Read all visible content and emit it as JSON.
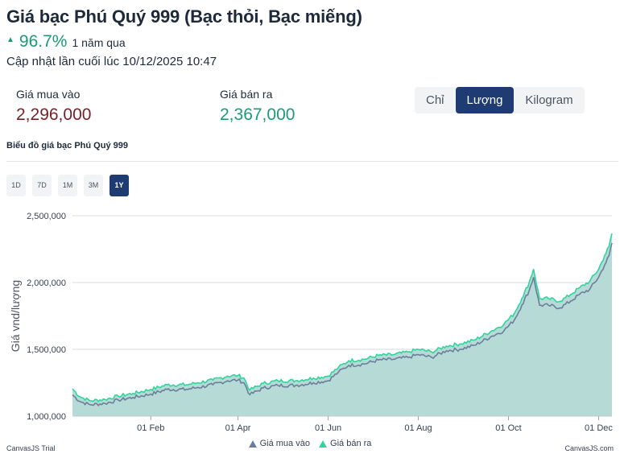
{
  "page": {
    "title": "Giá bạc Phú Quý 999 (Bạc thỏi, Bạc miếng)",
    "change_value": "96.7%",
    "change_period": "1 năm qua",
    "updated": "Cập nhật lần cuối lúc 10/12/2025 10:47",
    "buy_label": "Giá mua vào",
    "buy_value": "2,296,000",
    "sell_label": "Giá bán ra",
    "sell_value": "2,367,000",
    "units": [
      "Chỉ",
      "Lượng",
      "Kilogram"
    ],
    "active_unit": "Lượng",
    "chart_title": "Biểu đồ giá bạc Phú Quý 999",
    "ranges": [
      "1D",
      "7D",
      "1M",
      "3M",
      "1Y"
    ],
    "active_range": "1Y",
    "watermark_left": "CanvasJS Trial",
    "watermark_right": "CanvasJS.com"
  },
  "colors": {
    "buy_line": "#6b7f9c",
    "sell_line": "#2fd59a",
    "area_fill": "#b6dbd6",
    "accent": "#1f3b73",
    "up": "#1a9b76"
  },
  "chart_data": {
    "type": "area",
    "title": "",
    "xlabel": "",
    "ylabel": "Giá vnd/lượng",
    "ylim": [
      1000000,
      2500000
    ],
    "xlim": [
      "2024-12-10",
      "2025-12-10"
    ],
    "yticks": [
      1000000,
      1500000,
      2000000,
      2500000
    ],
    "ytick_labels": [
      "1,000,000",
      "1,500,000",
      "2,000,000",
      "2,500,000"
    ],
    "xticks": [
      "2025-02-01",
      "2025-04-01",
      "2025-06-01",
      "2025-08-01",
      "2025-10-01",
      "2025-12-01"
    ],
    "xtick_labels": [
      "01 Feb",
      "01 Apr",
      "01 Jun",
      "01 Aug",
      "01 Oct",
      "01 Dec"
    ],
    "grid": true,
    "legend": "bottom-center",
    "x": [
      "2024-12-10",
      "2024-12-15",
      "2024-12-22",
      "2025-01-01",
      "2025-01-10",
      "2025-01-20",
      "2025-02-01",
      "2025-02-12",
      "2025-02-25",
      "2025-03-05",
      "2025-03-15",
      "2025-03-25",
      "2025-04-01",
      "2025-04-05",
      "2025-04-09",
      "2025-04-18",
      "2025-04-28",
      "2025-05-10",
      "2025-05-22",
      "2025-06-01",
      "2025-06-08",
      "2025-06-15",
      "2025-06-25",
      "2025-07-05",
      "2025-07-15",
      "2025-07-25",
      "2025-08-01",
      "2025-08-10",
      "2025-08-20",
      "2025-08-29",
      "2025-09-08",
      "2025-09-20",
      "2025-09-28",
      "2025-10-05",
      "2025-10-10",
      "2025-10-15",
      "2025-10-18",
      "2025-10-22",
      "2025-10-28",
      "2025-11-05",
      "2025-11-12",
      "2025-11-18",
      "2025-11-25",
      "2025-12-01",
      "2025-12-05",
      "2025-12-08",
      "2025-12-10"
    ],
    "series": [
      {
        "name": "Giá mua vào",
        "values": [
          1160000,
          1110000,
          1085000,
          1095000,
          1120000,
          1140000,
          1165000,
          1200000,
          1200000,
          1215000,
          1235000,
          1265000,
          1270000,
          1250000,
          1160000,
          1210000,
          1230000,
          1230000,
          1250000,
          1265000,
          1330000,
          1380000,
          1390000,
          1420000,
          1425000,
          1440000,
          1460000,
          1440000,
          1490000,
          1500000,
          1530000,
          1600000,
          1640000,
          1720000,
          1830000,
          1940000,
          2040000,
          1830000,
          1830000,
          1810000,
          1860000,
          1910000,
          1950000,
          2040000,
          2130000,
          2200000,
          2296000
        ]
      },
      {
        "name": "Giá bán ra",
        "values": [
          1205000,
          1145000,
          1115000,
          1125000,
          1150000,
          1170000,
          1200000,
          1235000,
          1235000,
          1250000,
          1270000,
          1300000,
          1305000,
          1285000,
          1195000,
          1245000,
          1265000,
          1265000,
          1285000,
          1300000,
          1365000,
          1415000,
          1425000,
          1455000,
          1460000,
          1480000,
          1500000,
          1480000,
          1525000,
          1540000,
          1570000,
          1640000,
          1690000,
          1770000,
          1880000,
          2000000,
          2100000,
          1880000,
          1880000,
          1860000,
          1910000,
          1960000,
          2010000,
          2100000,
          2200000,
          2270000,
          2367000
        ]
      }
    ]
  }
}
